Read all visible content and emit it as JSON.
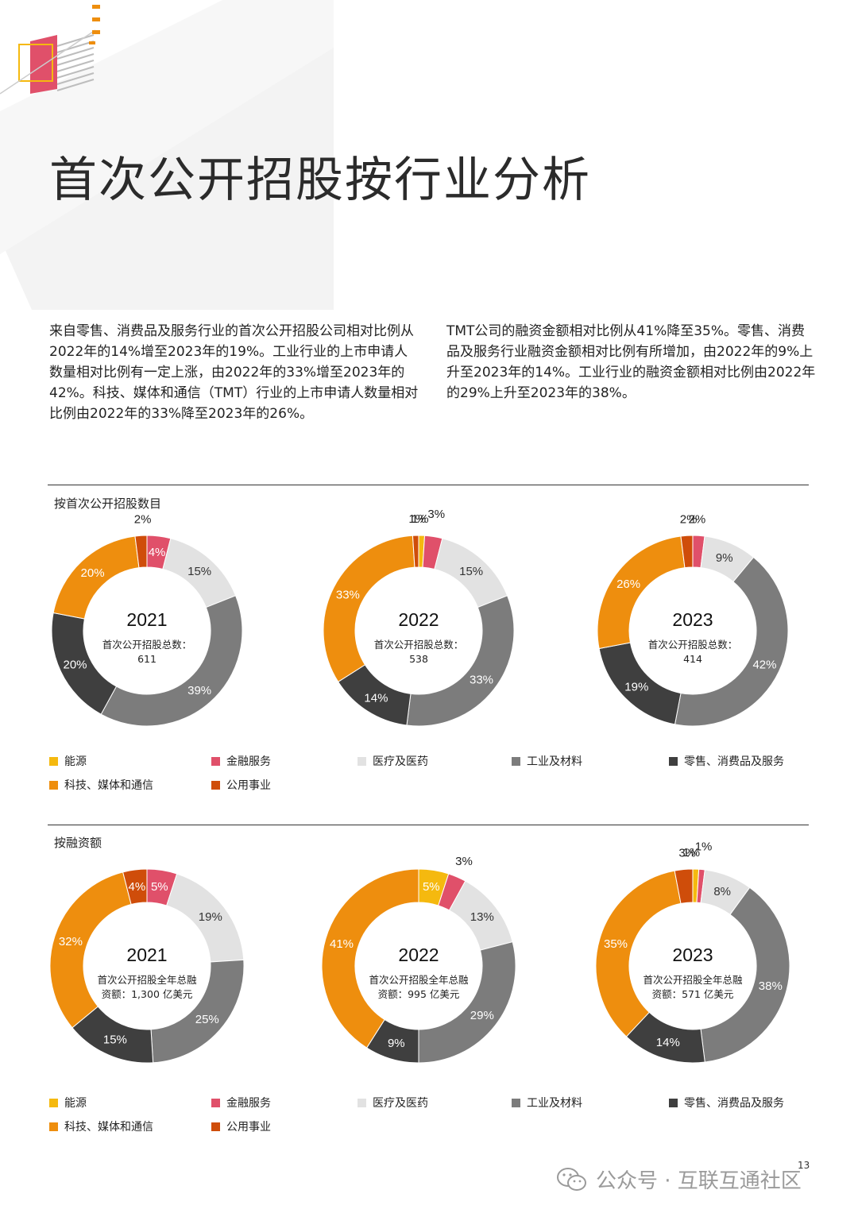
{
  "page": {
    "title": "首次公开招股按行业分析",
    "intro_left": "来自零售、消费品及服务行业的首次公开招股公司相对比例从2022年的14%增至2023年的19%。工业行业的上市申请人数量相对比例有一定上涨，由2022年的33%增至2023年的42%。科技、媒体和通信（TMT）行业的上市申请人数量相对比例由2022年的33%降至2023年的26%。",
    "intro_right": "TMT公司的融资金额相对比例从41%降至35%。零售、消费品及服务行业融资金额相对比例有所增加，由2022年的9%上升至2023年的14%。工业行业的融资金额相对比例由2022年的29%上升至2023年的38%。",
    "section1_title": "按首次公开招股数目",
    "section2_title": "按融资额",
    "page_number": "13",
    "watermark": "公众号 · 互联互通社区"
  },
  "categories": [
    "能源",
    "金融服务",
    "医疗及医药",
    "工业及材料",
    "零售、消费品及服务",
    "科技、媒体和通信",
    "公用事业"
  ],
  "colors": [
    "#F5B90F",
    "#E0506A",
    "#E2E2E2",
    "#7C7C7C",
    "#3F3F3F",
    "#EE8E0E",
    "#CF4D0A"
  ],
  "chart_data": [
    {
      "type": "pie",
      "variant": "donut",
      "section": "按首次公开招股数目",
      "year": "2021",
      "center_label": "首次公开招股总数：",
      "center_value": "611",
      "categories": [
        "能源",
        "金融服务",
        "医疗及医药",
        "工业及材料",
        "零售、消费品及服务",
        "科技、媒体和通信",
        "公用事业"
      ],
      "values": [
        0,
        4,
        15,
        39,
        20,
        20,
        2
      ],
      "labels": [
        "",
        "4%",
        "15%",
        "39%",
        "20%",
        "20%",
        "2%"
      ]
    },
    {
      "type": "pie",
      "variant": "donut",
      "section": "按首次公开招股数目",
      "year": "2022",
      "center_label": "首次公开招股总数：",
      "center_value": "538",
      "categories": [
        "能源",
        "金融服务",
        "医疗及医药",
        "工业及材料",
        "零售、消费品及服务",
        "科技、媒体和通信",
        "公用事业"
      ],
      "values": [
        1,
        3,
        15,
        33,
        14,
        33,
        1
      ],
      "labels": [
        "1%",
        "3%",
        "15%",
        "33%",
        "14%",
        "33%",
        "1%"
      ]
    },
    {
      "type": "pie",
      "variant": "donut",
      "section": "按首次公开招股数目",
      "year": "2023",
      "center_label": "首次公开招股总数：",
      "center_value": "414",
      "categories": [
        "能源",
        "金融服务",
        "医疗及医药",
        "工业及材料",
        "零售、消费品及服务",
        "科技、媒体和通信",
        "公用事业"
      ],
      "values": [
        0,
        2,
        9,
        42,
        19,
        26,
        2
      ],
      "labels": [
        "",
        "2%",
        "9%",
        "42%",
        "19%",
        "26%",
        "2%"
      ]
    },
    {
      "type": "pie",
      "variant": "donut",
      "section": "按融资额",
      "year": "2021",
      "center_label": "首次公开招股全年总融",
      "center_value": "资额：1,300 亿美元",
      "categories": [
        "能源",
        "金融服务",
        "医疗及医药",
        "工业及材料",
        "零售、消费品及服务",
        "科技、媒体和通信",
        "公用事业"
      ],
      "values": [
        0,
        5,
        19,
        25,
        15,
        32,
        4
      ],
      "labels": [
        "",
        "5%",
        "19%",
        "25%",
        "15%",
        "32%",
        "4%"
      ]
    },
    {
      "type": "pie",
      "variant": "donut",
      "section": "按融资额",
      "year": "2022",
      "center_label": "首次公开招股全年总融",
      "center_value": "资额：995 亿美元",
      "categories": [
        "能源",
        "金融服务",
        "医疗及医药",
        "工业及材料",
        "零售、消费品及服务",
        "科技、媒体和通信",
        "公用事业"
      ],
      "values": [
        5,
        3,
        13,
        29,
        9,
        41,
        0
      ],
      "labels": [
        "5%",
        "3%",
        "13%",
        "29%",
        "9%",
        "41%",
        ""
      ]
    },
    {
      "type": "pie",
      "variant": "donut",
      "section": "按融资额",
      "year": "2023",
      "center_label": "首次公开招股全年总融",
      "center_value": "资额：571 亿美元",
      "categories": [
        "能源",
        "金融服务",
        "医疗及医药",
        "工业及材料",
        "零售、消费品及服务",
        "科技、媒体和通信",
        "公用事业"
      ],
      "values": [
        1,
        1,
        8,
        38,
        14,
        35,
        3
      ],
      "labels": [
        "1%",
        "1%",
        "8%",
        "38%",
        "14%",
        "35%",
        "3%"
      ]
    }
  ]
}
